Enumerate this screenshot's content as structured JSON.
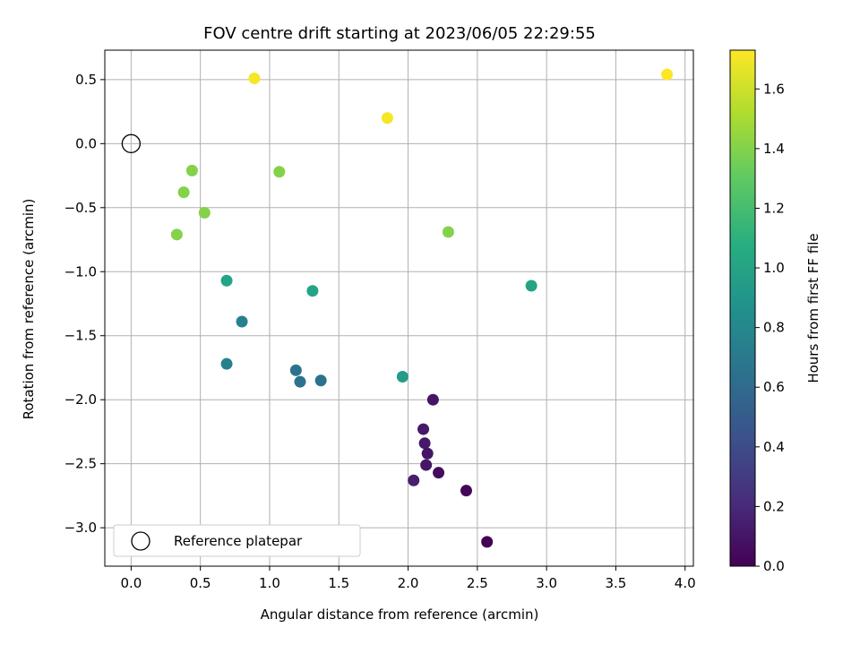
{
  "chart_data": {
    "type": "scatter",
    "title": "FOV centre drift starting at 2023/06/05 22:29:55",
    "xlabel": "Angular distance from reference (arcmin)",
    "ylabel": "Rotation from reference (arcmin)",
    "xlim": [
      -0.19,
      4.06
    ],
    "ylim": [
      -3.3,
      0.73
    ],
    "xticks": [
      0.0,
      0.5,
      1.0,
      1.5,
      2.0,
      2.5,
      3.0,
      3.5,
      4.0
    ],
    "xtick_labels": [
      "0.0",
      "0.5",
      "1.0",
      "1.5",
      "2.0",
      "2.5",
      "3.0",
      "3.5",
      "4.0"
    ],
    "yticks": [
      0.5,
      0.0,
      -0.5,
      -1.0,
      -1.5,
      -2.0,
      -2.5,
      -3.0
    ],
    "ytick_labels": [
      "0.5",
      "0.0",
      "−0.5",
      "−1.0",
      "−1.5",
      "−2.0",
      "−2.5",
      "−3.0"
    ],
    "grid": true,
    "legend": {
      "placement": "lower-left",
      "entries": [
        "Reference platepar"
      ]
    },
    "reference_point": {
      "x": 0.0,
      "y": 0.0,
      "marker": "open-circle",
      "color": "#000000"
    },
    "colorbar": {
      "label": "Hours from first FF file",
      "range": [
        0.0,
        1.73
      ],
      "colormap": "viridis",
      "ticks": [
        0.0,
        0.2,
        0.4,
        0.6,
        0.8,
        1.0,
        1.2,
        1.4,
        1.6
      ],
      "tick_labels": [
        "0.0",
        "0.2",
        "0.4",
        "0.6",
        "0.8",
        "1.0",
        "1.2",
        "1.4",
        "1.6"
      ]
    },
    "points": [
      {
        "x": 0.89,
        "y": 0.51,
        "h": 1.71
      },
      {
        "x": 1.85,
        "y": 0.2,
        "h": 1.71
      },
      {
        "x": 3.87,
        "y": 0.54,
        "h": 1.73
      },
      {
        "x": 0.44,
        "y": -0.21,
        "h": 1.4
      },
      {
        "x": 1.07,
        "y": -0.22,
        "h": 1.4
      },
      {
        "x": 0.38,
        "y": -0.38,
        "h": 1.4
      },
      {
        "x": 0.53,
        "y": -0.54,
        "h": 1.4
      },
      {
        "x": 0.33,
        "y": -0.71,
        "h": 1.4
      },
      {
        "x": 2.29,
        "y": -0.69,
        "h": 1.4
      },
      {
        "x": 0.69,
        "y": -1.07,
        "h": 1.0
      },
      {
        "x": 1.31,
        "y": -1.15,
        "h": 1.0
      },
      {
        "x": 2.89,
        "y": -1.11,
        "h": 1.0
      },
      {
        "x": 1.96,
        "y": -1.82,
        "h": 0.95
      },
      {
        "x": 0.8,
        "y": -1.39,
        "h": 0.75
      },
      {
        "x": 0.69,
        "y": -1.72,
        "h": 0.75
      },
      {
        "x": 1.19,
        "y": -1.77,
        "h": 0.65
      },
      {
        "x": 1.22,
        "y": -1.86,
        "h": 0.65
      },
      {
        "x": 1.37,
        "y": -1.85,
        "h": 0.65
      },
      {
        "x": 2.18,
        "y": -2.0,
        "h": 0.1
      },
      {
        "x": 2.11,
        "y": -2.23,
        "h": 0.12
      },
      {
        "x": 2.12,
        "y": -2.34,
        "h": 0.12
      },
      {
        "x": 2.14,
        "y": -2.42,
        "h": 0.1
      },
      {
        "x": 2.13,
        "y": -2.51,
        "h": 0.1
      },
      {
        "x": 2.22,
        "y": -2.57,
        "h": 0.05
      },
      {
        "x": 2.04,
        "y": -2.63,
        "h": 0.15
      },
      {
        "x": 2.42,
        "y": -2.71,
        "h": 0.03
      },
      {
        "x": 2.57,
        "y": -3.11,
        "h": 0.0
      }
    ]
  }
}
